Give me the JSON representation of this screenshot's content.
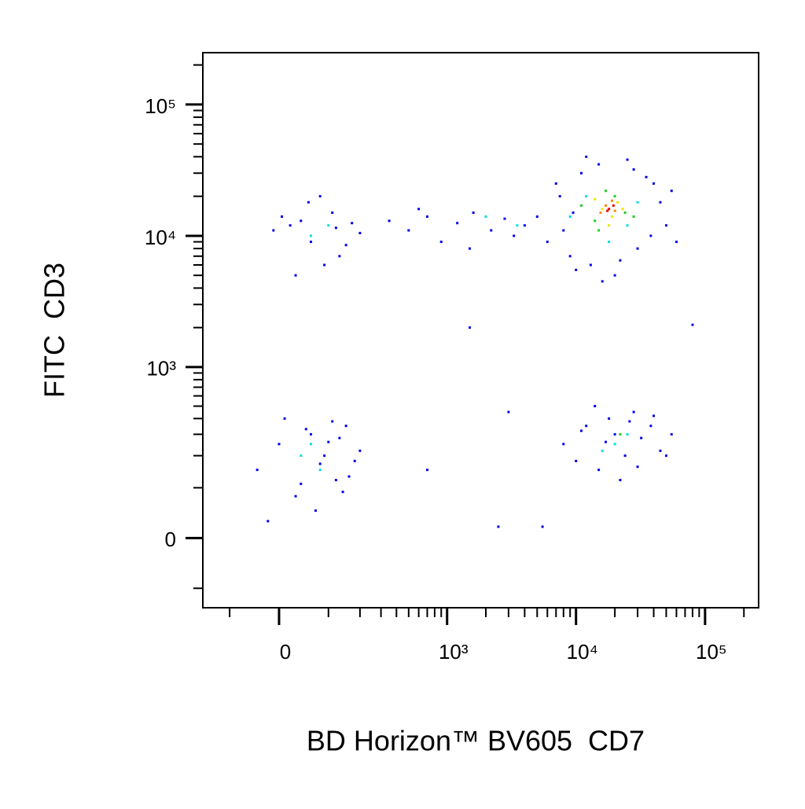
{
  "chart_data": {
    "type": "scatter",
    "scale": "biexponential",
    "xlabel": "BD Horizon™ BV605  CD7",
    "ylabel": "FITC  CD3",
    "xlim": [
      -182,
      260000
    ],
    "ylim": [
      -155,
      248000
    ],
    "xticks": [
      0,
      {
        "value": 1000,
        "label": "10³"
      },
      {
        "value": 10000,
        "label": "10⁴"
      },
      {
        "value": 100000,
        "label": "10⁵"
      }
    ],
    "yticks": [
      0,
      {
        "value": 1000,
        "label": "10³"
      },
      {
        "value": 10000,
        "label": "10⁴"
      },
      {
        "value": 100000,
        "label": "10⁵"
      }
    ],
    "xminor": [
      -100,
      100,
      200,
      300,
      400,
      500,
      600,
      700,
      800,
      900,
      2000,
      3000,
      4000,
      5000,
      6000,
      7000,
      8000,
      9000,
      20000,
      30000,
      40000,
      50000,
      60000,
      70000,
      80000,
      90000,
      200000
    ],
    "yminor": [
      -100,
      100,
      200,
      300,
      400,
      500,
      600,
      700,
      800,
      900,
      2000,
      3000,
      4000,
      5000,
      6000,
      7000,
      8000,
      9000,
      20000,
      30000,
      40000,
      50000,
      60000,
      70000,
      80000,
      90000,
      200000
    ],
    "series": [
      {
        "color": "#0000ee",
        "x": [
          20,
          60,
          110,
          -10,
          150,
          80,
          40,
          200,
          130,
          5,
          90,
          170,
          55,
          120,
          30,
          350,
          500,
          700,
          900,
          1200,
          1600,
          2200,
          2800,
          3300,
          4000,
          600,
          1500,
          5000,
          6000,
          7500,
          9000,
          11000,
          13000,
          15000,
          20000,
          25000,
          30000,
          40000,
          50000,
          60000,
          8000,
          12000,
          35000,
          45000,
          7000,
          10000,
          22000,
          28000,
          55000,
          16000,
          9500,
          38000,
          -40,
          0,
          30,
          60,
          90,
          120,
          150,
          180,
          10,
          70,
          100,
          140,
          200,
          -20,
          50,
          80,
          110,
          160,
          40,
          130,
          8000,
          10000,
          12000,
          15000,
          18000,
          20000,
          24000,
          28000,
          32000,
          38000,
          45000,
          55000,
          14000,
          22000,
          26000,
          30000,
          17000,
          40000,
          11000,
          50000,
          1500,
          2500,
          5500,
          3000,
          80000,
          700
        ],
        "values": [
          12000,
          9000,
          15000,
          11000,
          8500,
          20000,
          13000,
          10500,
          7000,
          14000,
          6000,
          12500,
          18000,
          11500,
          5000,
          13000,
          11000,
          14000,
          9000,
          12500,
          15000,
          11000,
          13500,
          10000,
          12000,
          16000,
          8000,
          14000,
          9000,
          20000,
          7000,
          30000,
          6000,
          35000,
          5000,
          38000,
          8000,
          25000,
          12000,
          9000,
          11000,
          40000,
          28000,
          18000,
          25000,
          5500,
          6500,
          32000,
          22000,
          4500,
          15000,
          10000,
          150,
          250,
          80,
          300,
          200,
          120,
          350,
          180,
          400,
          50,
          260,
          90,
          220,
          30,
          330,
          170,
          380,
          130,
          110,
          280,
          250,
          180,
          350,
          150,
          400,
          300,
          200,
          450,
          280,
          350,
          220,
          300,
          500,
          120,
          380,
          160,
          260,
          420,
          320,
          200,
          2000,
          20,
          20,
          450,
          2100,
          150
        ]
      },
      {
        "color": "#00e0e0",
        "x": [
          60,
          100,
          2000,
          3500,
          12000,
          18000,
          25000,
          9000,
          30000,
          40,
          80,
          60,
          20000,
          25000,
          16000
        ],
        "values": [
          10000,
          12000,
          14000,
          12000,
          20000,
          9000,
          12000,
          14000,
          18000,
          200,
          150,
          250,
          250,
          300,
          220
        ]
      },
      {
        "color": "#22cc22",
        "x": [
          14000,
          20000,
          24000,
          11000,
          17000,
          28000,
          22000,
          15000
        ],
        "values": [
          13000,
          20000,
          15000,
          17000,
          22000,
          14000,
          300,
          11000
        ]
      },
      {
        "color": "#e8e800",
        "x": [
          16000,
          19000,
          21000,
          14000,
          23000,
          18000
        ],
        "values": [
          16000,
          14000,
          18000,
          19000,
          16000,
          12000
        ]
      },
      {
        "color": "#ff8800",
        "x": [
          17000,
          20000,
          15500,
          19000
        ],
        "values": [
          17000,
          15500,
          15000,
          18500
        ]
      },
      {
        "color": "#ee0000",
        "x": [
          18000,
          17500,
          19500
        ],
        "values": [
          16000,
          15500,
          17000
        ]
      }
    ]
  }
}
